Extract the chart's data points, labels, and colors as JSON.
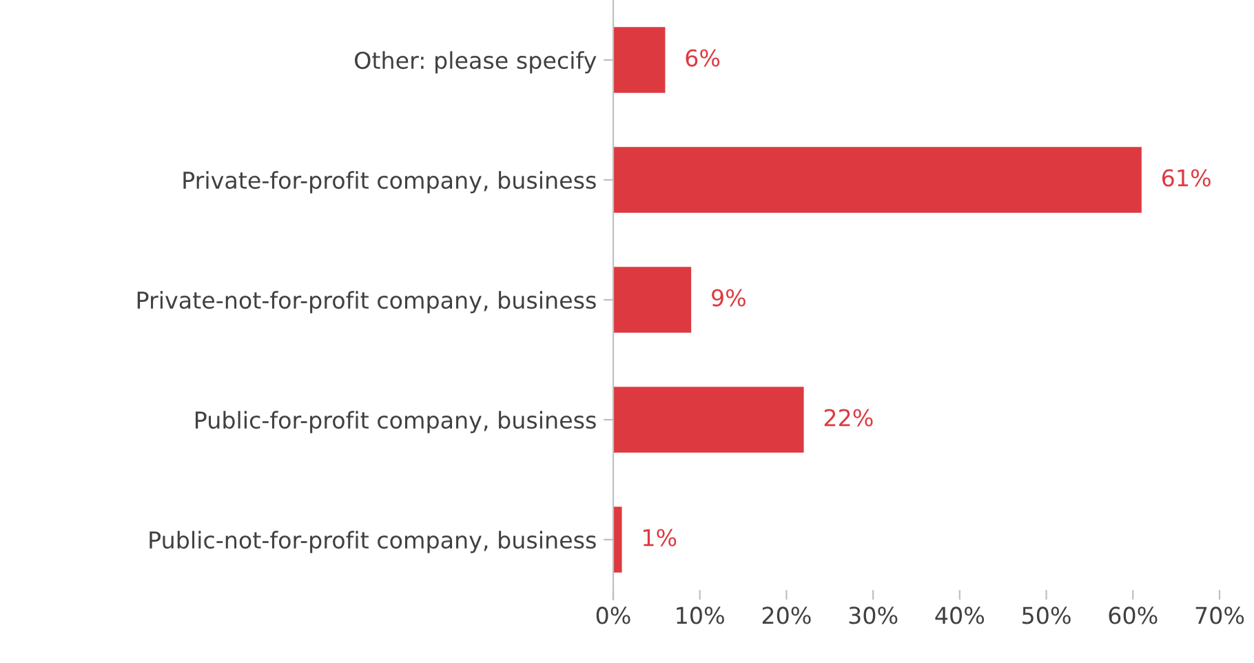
{
  "chart_data": {
    "type": "bar",
    "orientation": "horizontal",
    "categories": [
      "Other: please specify",
      "Private-for-profit company, business",
      "Private-not-for-profit company, business",
      "Public-for-profit company, business",
      "Public-not-for-profit company, business"
    ],
    "values": [
      6,
      61,
      9,
      22,
      1
    ],
    "value_labels": [
      "6%",
      "61%",
      "9%",
      "22%",
      "1%"
    ],
    "color": "#dc3a40",
    "xlim": [
      0,
      70
    ],
    "xticks": [
      {
        "value": 0,
        "label": "0%"
      },
      {
        "value": 10,
        "label": "10%"
      },
      {
        "value": 20,
        "label": "20%"
      },
      {
        "value": 30,
        "label": "30%"
      },
      {
        "value": 40,
        "label": "40%"
      },
      {
        "value": 50,
        "label": "50%"
      },
      {
        "value": 60,
        "label": "60%"
      },
      {
        "value": 70,
        "label": "70%"
      }
    ],
    "grid": false,
    "legend": false
  }
}
